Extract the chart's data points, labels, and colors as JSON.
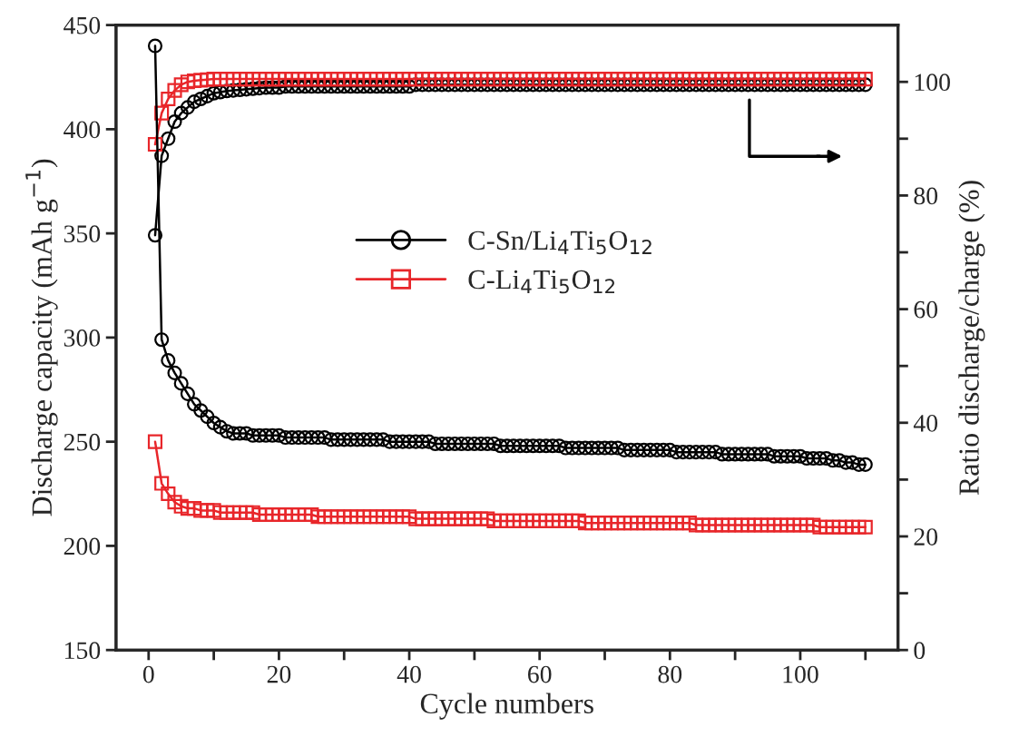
{
  "chart_data": {
    "type": "line",
    "xlabel": "Cycle numbers",
    "ylabel": "Discharge capacity (mAh g$^{−1}$)",
    "y2label": "Ratio discharge/charge (%)",
    "x": [
      1,
      2,
      3,
      4,
      5,
      6,
      7,
      8,
      9,
      10,
      11,
      12,
      13,
      14,
      15,
      16,
      17,
      18,
      19,
      20,
      21,
      22,
      23,
      24,
      25,
      26,
      27,
      28,
      29,
      30,
      31,
      32,
      33,
      34,
      35,
      36,
      37,
      38,
      39,
      40,
      41,
      42,
      43,
      44,
      45,
      46,
      47,
      48,
      49,
      50,
      51,
      52,
      53,
      54,
      55,
      56,
      57,
      58,
      59,
      60,
      61,
      62,
      63,
      64,
      65,
      66,
      67,
      68,
      69,
      70,
      71,
      72,
      73,
      74,
      75,
      76,
      77,
      78,
      79,
      80,
      81,
      82,
      83,
      84,
      85,
      86,
      87,
      88,
      89,
      90,
      91,
      92,
      93,
      94,
      95,
      96,
      97,
      98,
      99,
      100,
      101,
      102,
      103,
      104,
      105,
      106,
      107,
      108,
      109,
      110
    ],
    "series": [
      {
        "name": "C-Sn/Li$_{4}$Ti$_{5}$O$_{12}$",
        "color": "#000000",
        "marker": "circle",
        "values": [
          440,
          299,
          289,
          283,
          278,
          273,
          268,
          265,
          262,
          259,
          257,
          255,
          254,
          254,
          254,
          253,
          253,
          253,
          253,
          253,
          252,
          252,
          252,
          252,
          252,
          252,
          252,
          251,
          251,
          251,
          251,
          251,
          251,
          251,
          251,
          251,
          250,
          250,
          250,
          250,
          250,
          250,
          250,
          249,
          249,
          249,
          249,
          249,
          249,
          249,
          249,
          249,
          249,
          248,
          248,
          248,
          248,
          248,
          248,
          248,
          248,
          248,
          248,
          247,
          247,
          247,
          247,
          247,
          247,
          247,
          247,
          247,
          246,
          246,
          246,
          246,
          246,
          246,
          246,
          246,
          245,
          245,
          245,
          245,
          245,
          245,
          245,
          244,
          244,
          244,
          244,
          244,
          244,
          244,
          244,
          243,
          243,
          243,
          243,
          243,
          242,
          242,
          242,
          242,
          241,
          241,
          240,
          240,
          239,
          239
        ]
      },
      {
        "name": "C-Li$_{4}$Ti$_{5}$O$_{12}$",
        "color": "#e8262a",
        "marker": "square",
        "values": [
          250,
          230,
          225,
          221,
          219,
          218,
          218,
          217,
          217,
          217,
          216,
          216,
          216,
          216,
          216,
          216,
          215,
          215,
          215,
          215,
          215,
          215,
          215,
          215,
          215,
          214,
          214,
          214,
          214,
          214,
          214,
          214,
          214,
          214,
          214,
          214,
          214,
          214,
          214,
          214,
          213,
          213,
          213,
          213,
          213,
          213,
          213,
          213,
          213,
          213,
          213,
          213,
          212,
          212,
          212,
          212,
          212,
          212,
          212,
          212,
          212,
          212,
          212,
          212,
          212,
          212,
          211,
          211,
          211,
          211,
          211,
          211,
          211,
          211,
          211,
          211,
          211,
          211,
          211,
          211,
          211,
          211,
          211,
          210,
          210,
          210,
          210,
          210,
          210,
          210,
          210,
          210,
          210,
          210,
          210,
          210,
          210,
          210,
          210,
          210,
          210,
          210,
          209,
          209,
          209,
          209,
          209,
          209,
          209,
          209
        ]
      },
      {
        "axis": "y2",
        "color": "#000000",
        "marker": "circle",
        "values": [
          73,
          87,
          90,
          93,
          94.5,
          95.5,
          96.5,
          97,
          97.5,
          98,
          98.2,
          98.4,
          98.5,
          98.6,
          98.7,
          98.8,
          98.9,
          99,
          99,
          99,
          99.2,
          99.2,
          99.2,
          99.2,
          99.2,
          99.2,
          99.2,
          99.2,
          99.2,
          99.2,
          99.2,
          99.2,
          99.2,
          99.2,
          99.2,
          99.2,
          99.2,
          99.2,
          99.2,
          99.2,
          99.5,
          99.5,
          99.5,
          99.5,
          99.5,
          99.5,
          99.5,
          99.5,
          99.5,
          99.5,
          99.5,
          99.5,
          99.5,
          99.5,
          99.5,
          99.5,
          99.5,
          99.5,
          99.5,
          99.5,
          99.5,
          99.5,
          99.5,
          99.5,
          99.5,
          99.5,
          99.5,
          99.5,
          99.5,
          99.5,
          99.5,
          99.5,
          99.5,
          99.5,
          99.5,
          99.5,
          99.5,
          99.5,
          99.5,
          99.5,
          99.5,
          99.5,
          99.5,
          99.5,
          99.5,
          99.5,
          99.5,
          99.5,
          99.5,
          99.5,
          99.5,
          99.5,
          99.5,
          99.5,
          99.5,
          99.5,
          99.5,
          99.5,
          99.5,
          99.5,
          99.5,
          99.5,
          99.5,
          99.5,
          99.5,
          99.5,
          99.5,
          99.5,
          99.5,
          99.5
        ]
      },
      {
        "axis": "y2",
        "color": "#e8262a",
        "marker": "square",
        "values": [
          89,
          94.5,
          97,
          98.5,
          99.5,
          100,
          100.2,
          100.3,
          100.4,
          100.5,
          100.5,
          100.5,
          100.5,
          100.5,
          100.5,
          100.5,
          100.5,
          100.5,
          100.5,
          100.5,
          100.5,
          100.5,
          100.5,
          100.5,
          100.5,
          100.5,
          100.5,
          100.5,
          100.5,
          100.5,
          100.5,
          100.5,
          100.5,
          100.5,
          100.5,
          100.5,
          100.5,
          100.5,
          100.5,
          100.5,
          100.5,
          100.5,
          100.5,
          100.5,
          100.5,
          100.5,
          100.5,
          100.5,
          100.5,
          100.5,
          100.5,
          100.5,
          100.5,
          100.5,
          100.5,
          100.5,
          100.5,
          100.5,
          100.5,
          100.5,
          100.5,
          100.5,
          100.5,
          100.5,
          100.5,
          100.5,
          100.5,
          100.5,
          100.5,
          100.5,
          100.5,
          100.5,
          100.5,
          100.5,
          100.5,
          100.5,
          100.5,
          100.5,
          100.5,
          100.5,
          100.5,
          100.5,
          100.5,
          100.5,
          100.5,
          100.5,
          100.5,
          100.5,
          100.5,
          100.5,
          100.5,
          100.5,
          100.5,
          100.5,
          100.5,
          100.5,
          100.5,
          100.5,
          100.5,
          100.5,
          100.5,
          100.5,
          100.5,
          100.5,
          100.5,
          100.5,
          100.5,
          100.5,
          100.5,
          100.5
        ]
      }
    ],
    "xlim": [
      -5,
      115
    ],
    "xticks": [
      0,
      {
        "value": 10,
        "label": null
      },
      20,
      {
        "value": 30,
        "label": null
      },
      40,
      {
        "value": 50,
        "label": null
      },
      60,
      {
        "value": 70,
        "label": null
      },
      80,
      {
        "value": 90,
        "label": null
      },
      100,
      {
        "value": 110,
        "label": null
      }
    ],
    "ylim": [
      150,
      450
    ],
    "yticks": [
      150,
      200,
      250,
      300,
      350,
      400,
      450
    ],
    "y2lim": [
      0,
      110
    ],
    "y2ticks": [
      0,
      {
        "value": 10,
        "label": null
      },
      20,
      {
        "value": 30,
        "label": null
      },
      40,
      {
        "value": 50,
        "label": null
      },
      60,
      {
        "value": 70,
        "label": null
      },
      80,
      {
        "value": 90,
        "label": null
      },
      100
    ],
    "legend": "center right",
    "grid": false,
    "line_style": "solid"
  }
}
